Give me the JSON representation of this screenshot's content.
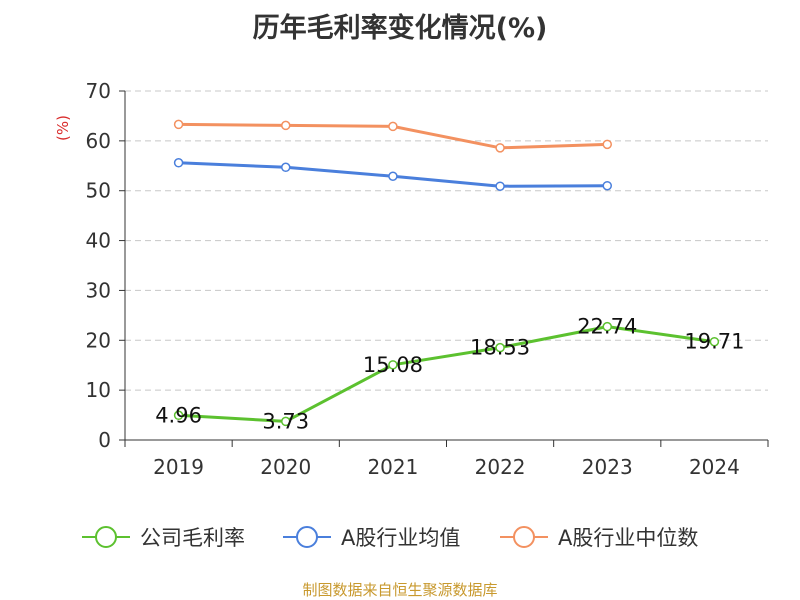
{
  "chart_data": {
    "type": "line",
    "title": "历年毛利率变化情况(%)",
    "ylabel": "(%)",
    "categories": [
      "2019",
      "2020",
      "2021",
      "2022",
      "2023",
      "2024"
    ],
    "ylim": [
      0,
      70
    ],
    "yticks": [
      0,
      10,
      20,
      30,
      40,
      50,
      60,
      70
    ],
    "grid": true,
    "legend_position": "bottom",
    "series": [
      {
        "name": "公司毛利率",
        "color": "#5cc12f",
        "values": [
          4.96,
          3.73,
          15.08,
          18.53,
          22.74,
          19.71
        ],
        "labels": [
          "4.96",
          "3.73",
          "15.08",
          "18.53",
          "22.74",
          "19.71"
        ]
      },
      {
        "name": "A股行业均值",
        "color": "#4a7fdc",
        "values": [
          55.6,
          54.7,
          52.9,
          50.9,
          51.0,
          null
        ]
      },
      {
        "name": "A股行业中位数",
        "color": "#f39160",
        "values": [
          63.3,
          63.1,
          62.9,
          58.6,
          59.3,
          null
        ]
      }
    ]
  },
  "source": "制图数据来自恒生聚源数据库"
}
